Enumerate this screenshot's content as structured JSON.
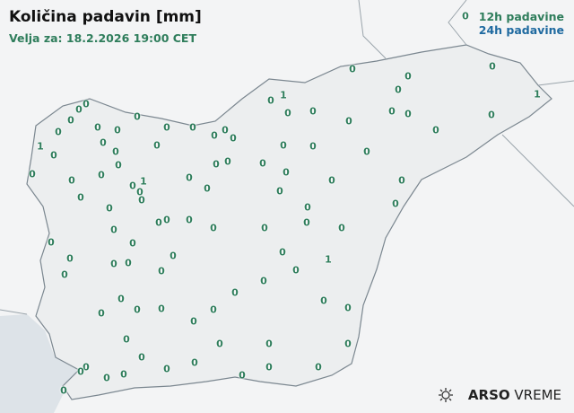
{
  "title": "Količina padavin [mm]",
  "subtitle": "Velja za: 18.2.2026 19:00 CET",
  "legend": {
    "h12": "12h padavine",
    "h24": "24h padavine"
  },
  "logo": {
    "icon": "sun-cloud-icon",
    "brand_bold": "ARSO",
    "brand_light": "VREME"
  },
  "colors": {
    "h12": "#2e7d5b",
    "h24": "#1f6aa0",
    "sea": "#dde3e8",
    "border": "#7b8790"
  },
  "stations_12h": [
    0,
    0,
    0,
    0,
    1,
    1,
    0,
    0,
    0,
    0,
    0,
    0,
    0,
    0,
    0,
    0,
    0,
    0,
    0,
    0,
    0,
    0,
    0,
    0,
    0,
    0,
    0,
    0,
    0,
    1,
    0,
    0,
    0,
    0,
    0,
    0,
    0,
    0,
    0,
    0,
    0,
    0,
    0,
    0,
    1,
    0,
    0,
    0,
    0,
    0,
    0,
    0,
    0,
    0,
    0,
    0,
    0,
    0,
    0,
    0,
    0,
    0,
    0,
    0,
    0,
    0,
    0,
    0,
    1,
    0,
    0,
    0,
    0,
    0,
    0,
    0,
    0,
    0,
    0,
    0,
    0,
    0,
    0,
    0,
    0,
    0,
    0,
    0,
    0,
    0,
    0,
    0,
    0,
    0,
    0,
    0,
    0,
    0,
    0,
    0,
    0
  ]
}
